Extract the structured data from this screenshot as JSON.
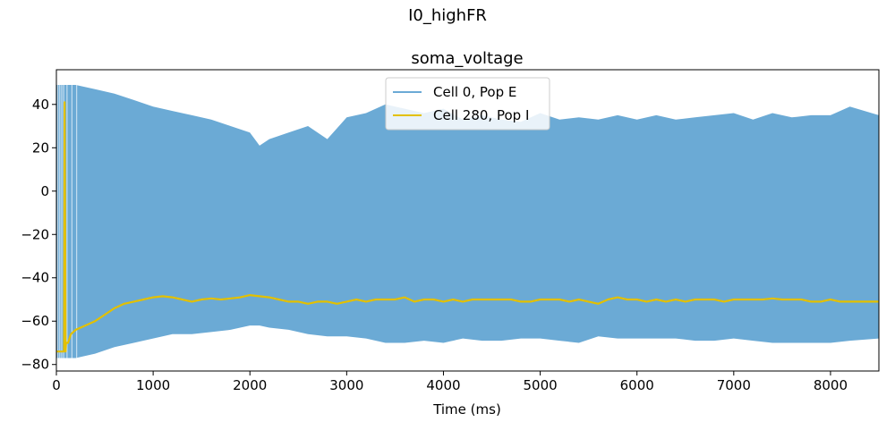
{
  "figure": {
    "suptitle": "I0_highFR"
  },
  "chart_data": {
    "type": "line",
    "title": "soma_voltage",
    "xlabel": "Time (ms)",
    "ylabel": "",
    "xlim": [
      0,
      8500
    ],
    "ylim": [
      -83,
      56
    ],
    "xticks": [
      0,
      1000,
      2000,
      3000,
      4000,
      5000,
      6000,
      7000,
      8000
    ],
    "yticks": [
      -80,
      -60,
      -40,
      -20,
      0,
      20,
      40
    ],
    "ytick_labels": [
      "−80",
      "−60",
      "−40",
      "−20",
      "0",
      "20",
      "40"
    ],
    "legend_position": "top-center",
    "grid": false,
    "series": [
      {
        "name": "Cell 0, Pop E",
        "color": "#6baad5",
        "style": "dense-spiking-band",
        "x": [
          0,
          200,
          400,
          600,
          800,
          1000,
          1200,
          1400,
          1600,
          1800,
          2000,
          2100,
          2200,
          2400,
          2600,
          2800,
          3000,
          3200,
          3400,
          3600,
          3800,
          4000,
          4200,
          4400,
          4600,
          4800,
          5000,
          5200,
          5400,
          5600,
          5800,
          6000,
          6200,
          6400,
          6600,
          6800,
          7000,
          7200,
          7400,
          7600,
          7800,
          8000,
          8200,
          8500
        ],
        "upper": [
          49,
          49,
          47,
          45,
          42,
          39,
          37,
          35,
          33,
          30,
          27,
          21,
          24,
          27,
          30,
          24,
          34,
          36,
          40,
          38,
          36,
          38,
          33,
          35,
          33,
          32,
          36,
          33,
          34,
          33,
          35,
          33,
          35,
          33,
          34,
          35,
          36,
          33,
          36,
          34,
          35,
          35,
          39,
          35
        ],
        "lower": [
          -77,
          -77,
          -75,
          -72,
          -70,
          -68,
          -66,
          -66,
          -65,
          -64,
          -62,
          -62,
          -63,
          -64,
          -66,
          -67,
          -67,
          -68,
          -70,
          -70,
          -69,
          -70,
          -68,
          -69,
          -69,
          -68,
          -68,
          -69,
          -70,
          -67,
          -68,
          -68,
          -68,
          -68,
          -69,
          -69,
          -68,
          -69,
          -70,
          -70,
          -70,
          -70,
          -69,
          -68
        ]
      },
      {
        "name": "Cell 280, Pop I",
        "color": "#e3c000",
        "x": [
          0,
          80,
          85,
          95,
          100,
          120,
          150,
          200,
          300,
          400,
          500,
          600,
          700,
          800,
          900,
          1000,
          1100,
          1200,
          1300,
          1400,
          1500,
          1600,
          1700,
          1800,
          1900,
          2000,
          2100,
          2200,
          2300,
          2400,
          2500,
          2600,
          2700,
          2800,
          2900,
          3000,
          3100,
          3200,
          3300,
          3400,
          3500,
          3600,
          3700,
          3800,
          3900,
          4000,
          4100,
          4200,
          4300,
          4400,
          4500,
          4600,
          4700,
          4800,
          4900,
          5000,
          5100,
          5200,
          5300,
          5400,
          5500,
          5600,
          5700,
          5800,
          5900,
          6000,
          6100,
          6200,
          6300,
          6400,
          6500,
          6600,
          6700,
          6800,
          6900,
          7000,
          7100,
          7200,
          7300,
          7400,
          7500,
          7600,
          7700,
          7800,
          7900,
          8000,
          8100,
          8200,
          8300,
          8400,
          8500
        ],
        "y": [
          -74,
          -74,
          41,
          -74,
          -70,
          -70,
          -66,
          -64,
          -62,
          -60,
          -57,
          -54,
          -52,
          -51,
          -50,
          -49,
          -48.5,
          -49,
          -50,
          -51,
          -50,
          -49.5,
          -50,
          -49.5,
          -49,
          -48,
          -48.5,
          -49,
          -50,
          -51,
          -51,
          -52,
          -51,
          -51,
          -52,
          -51,
          -50,
          -51,
          -50,
          -50,
          -50,
          -49,
          -51,
          -50,
          -50,
          -51,
          -50,
          -51,
          -50,
          -50,
          -50,
          -50,
          -50,
          -51,
          -51,
          -50,
          -50,
          -50,
          -51,
          -50,
          -51,
          -52,
          -50,
          -49,
          -50,
          -50,
          -51,
          -50,
          -51,
          -50,
          -51,
          -50,
          -50,
          -50,
          -51,
          -50,
          -50,
          -50,
          -50,
          -49.5,
          -50,
          -50,
          -50,
          -51,
          -51,
          -50,
          -51,
          -51,
          -51,
          -51,
          -51
        ]
      }
    ]
  }
}
